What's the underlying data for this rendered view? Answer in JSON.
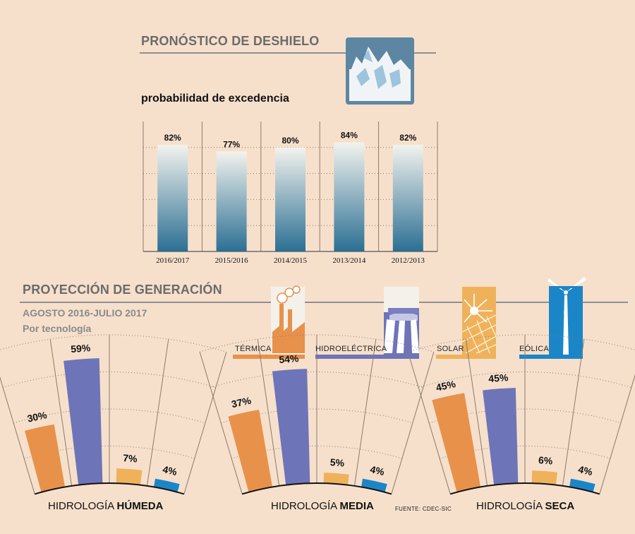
{
  "snowmelt": {
    "heading": "PRONÓSTICO DE DESHIELO",
    "subtitle": "probabilidad de excedencia"
  },
  "generation": {
    "heading": "PROYECCIÓN DE GENERACIÓN",
    "period": "AGOSTO 2016-JULIO 2017",
    "by": "Por tecnología",
    "source": "FUENTE: CDEC-SIC"
  },
  "technologies": [
    {
      "label": "TÉRMICA",
      "color": "#e8914b",
      "icon": "factory-icon"
    },
    {
      "label": "HIDROELÉCTRICA",
      "color": "#6e74b8",
      "icon": "dam-icon"
    },
    {
      "label": "SOLAR",
      "color": "#efb25a",
      "icon": "solar-panel-icon"
    },
    {
      "label": "EÓLICA",
      "color": "#1a86c8",
      "icon": "wind-turbine-icon"
    }
  ],
  "colors": {
    "background": "#f6e0cc",
    "bar_top": "#f3f3ee",
    "bar_bottom": "#2b6f93",
    "icon_frame": "#5d86a3"
  },
  "chart_data": [
    {
      "type": "bar",
      "title": "PRONÓSTICO DE DESHIELO",
      "subtitle": "probabilidad de excedencia",
      "categories": [
        "2016/2017",
        "2015/2016",
        "2014/2015",
        "2013/2014",
        "2012/2013"
      ],
      "values": [
        82,
        77,
        80,
        84,
        82
      ],
      "labels": [
        "82%",
        "77%",
        "80%",
        "84%",
        "82%"
      ],
      "unit": "%",
      "ylim": [
        0,
        100
      ],
      "grid": true
    },
    {
      "type": "bar",
      "title_prefix": "HIDROLOGÍA ",
      "title_bold": "HÚMEDA",
      "categories": [
        "TÉRMICA",
        "HIDROELÉCTRICA",
        "SOLAR",
        "EÓLICA"
      ],
      "values": [
        30,
        59,
        7,
        4
      ],
      "labels": [
        "30%",
        "59%",
        "7%",
        "4%"
      ],
      "unit": "%",
      "ylim": [
        0,
        70
      ]
    },
    {
      "type": "bar",
      "title_prefix": "HIDROLOGÍA ",
      "title_bold": "MEDIA",
      "categories": [
        "TÉRMICA",
        "HIDROELÉCTRICA",
        "SOLAR",
        "EÓLICA"
      ],
      "values": [
        37,
        54,
        5,
        4
      ],
      "labels": [
        "37%",
        "54%",
        "5%",
        "4%"
      ],
      "unit": "%",
      "ylim": [
        0,
        70
      ]
    },
    {
      "type": "bar",
      "title_prefix": "HIDROLOGÍA ",
      "title_bold": "SECA",
      "categories": [
        "TÉRMICA",
        "HIDROELÉCTRICA",
        "SOLAR",
        "EÓLICA"
      ],
      "values": [
        45,
        45,
        6,
        4
      ],
      "labels": [
        "45%",
        "45%",
        "6%",
        "4%"
      ],
      "unit": "%",
      "ylim": [
        0,
        70
      ]
    }
  ]
}
